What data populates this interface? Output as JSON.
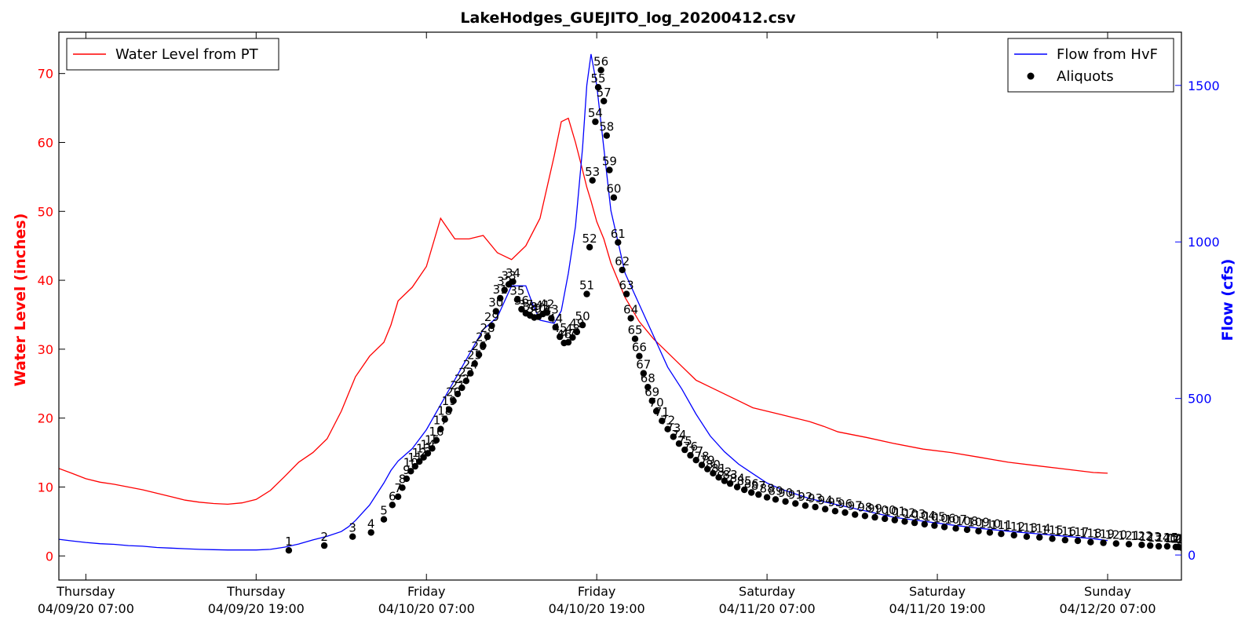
{
  "chart_data": {
    "type": "line",
    "title": "LakeHodges_GUEJITO_log_20200412.csv",
    "left_axis": {
      "label": "Water Level (inches)",
      "color": "#ff0000",
      "ylim": [
        -3.5,
        76
      ],
      "ticks": [
        0,
        10,
        20,
        30,
        40,
        50,
        60,
        70
      ]
    },
    "right_axis": {
      "label": "Flow (cfs)",
      "color": "#0000ff",
      "ylim": [
        -80,
        1670
      ],
      "ticks": [
        0,
        500,
        1000,
        1500
      ]
    },
    "x_axis": {
      "unit": "hours since 04/09/20 00:00",
      "xlim": [
        5.1,
        84.2
      ],
      "ticks": [
        {
          "x": 7,
          "day": "Thursday",
          "date": "04/09/20 07:00"
        },
        {
          "x": 19,
          "day": "Thursday",
          "date": "04/09/20 19:00"
        },
        {
          "x": 31,
          "day": "Friday",
          "date": "04/10/20 07:00"
        },
        {
          "x": 43,
          "day": "Friday",
          "date": "04/10/20 19:00"
        },
        {
          "x": 55,
          "day": "Saturday",
          "date": "04/11/20 07:00"
        },
        {
          "x": 67,
          "day": "Saturday",
          "date": "04/11/20 19:00"
        },
        {
          "x": 79,
          "day": "Sunday",
          "date": "04/12/20 07:00"
        }
      ]
    },
    "legend_left": [
      {
        "label": "Water Level from PT",
        "color": "#ff0000",
        "marker": "line"
      }
    ],
    "legend_right": [
      {
        "label": "Flow from HvF",
        "color": "#0000ff",
        "marker": "line"
      },
      {
        "label": "Aliquots",
        "color": "#000000",
        "marker": "dot"
      }
    ],
    "series": [
      {
        "name": "Water Level from PT",
        "axis": "left",
        "color": "#ff0000",
        "x": [
          5.1,
          6.0,
          7.0,
          8.0,
          9.0,
          10.0,
          11.0,
          12.0,
          13.0,
          14.0,
          15.0,
          16.0,
          17.0,
          18.0,
          19.0,
          20.0,
          21.0,
          22.0,
          23.0,
          24.0,
          25.0,
          25.5,
          26.0,
          27.0,
          28.0,
          28.5,
          29.0,
          30.0,
          31.0,
          32.0,
          33.0,
          34.0,
          35.0,
          36.0,
          37.0,
          38.0,
          39.0,
          40.0,
          40.5,
          41.0,
          41.5,
          42.0,
          42.3,
          42.6,
          43.0,
          43.5,
          44.0,
          44.5,
          45.0,
          46.0,
          47.0,
          48.0,
          49.0,
          50.0,
          51.0,
          52.0,
          53.0,
          54.0,
          55.0,
          56.0,
          57.0,
          58.0,
          59.0,
          60.0,
          62.0,
          64.0,
          66.0,
          68.0,
          70.0,
          72.0,
          74.0,
          76.0,
          78.0,
          79.0
        ],
        "y": [
          12.7,
          12.0,
          11.2,
          10.7,
          10.4,
          10.0,
          9.6,
          9.1,
          8.6,
          8.1,
          7.8,
          7.6,
          7.5,
          7.7,
          8.2,
          9.5,
          11.5,
          13.6,
          15.0,
          17.0,
          21.0,
          23.5,
          26.0,
          29.0,
          31.0,
          33.5,
          37.0,
          39.0,
          42.0,
          49.0,
          46.0,
          46.0,
          46.5,
          44.0,
          43.0,
          45.0,
          49.0,
          58.0,
          63.0,
          63.5,
          60.0,
          56.0,
          53.5,
          51.5,
          48.5,
          46.0,
          42.5,
          40.0,
          37.5,
          34.0,
          31.5,
          29.5,
          27.5,
          25.5,
          24.5,
          23.5,
          22.5,
          21.5,
          21.0,
          20.5,
          20.0,
          19.5,
          18.8,
          18.0,
          17.2,
          16.3,
          15.5,
          15.0,
          14.3,
          13.6,
          13.1,
          12.6,
          12.1,
          12.0
        ]
      },
      {
        "name": "Flow from HvF",
        "axis": "right",
        "color": "#0000ff",
        "x": [
          5.1,
          6.0,
          7.0,
          8.0,
          9.0,
          10.0,
          11.0,
          12.0,
          13.0,
          14.0,
          15.0,
          16.0,
          17.0,
          18.0,
          19.0,
          20.0,
          21.0,
          22.0,
          23.0,
          24.0,
          25.0,
          25.5,
          26.0,
          27.0,
          28.0,
          28.5,
          29.0,
          30.0,
          31.0,
          32.0,
          33.0,
          34.0,
          35.0,
          36.0,
          37.0,
          38.0,
          38.5,
          39.0,
          40.0,
          40.5,
          41.0,
          41.5,
          42.0,
          42.3,
          42.6,
          43.0,
          43.5,
          44.0,
          44.5,
          45.0,
          46.0,
          47.0,
          48.0,
          49.0,
          50.0,
          51.0,
          52.0,
          53.0,
          54.0,
          55.0,
          56.0,
          57.0,
          58.0,
          59.0,
          60.0,
          62.0,
          64.0,
          66.0,
          68.0,
          70.0,
          72.0,
          74.0,
          76.0,
          78.0,
          79.0
        ],
        "y": [
          50,
          45,
          40,
          36,
          34,
          30,
          28,
          24,
          22,
          20,
          18,
          17,
          16,
          16,
          16,
          18,
          25,
          35,
          48,
          60,
          75,
          90,
          110,
          160,
          230,
          270,
          300,
          340,
          400,
          480,
          560,
          640,
          720,
          760,
          860,
          860,
          800,
          750,
          740,
          780,
          900,
          1050,
          1300,
          1500,
          1600,
          1500,
          1300,
          1100,
          1000,
          900,
          800,
          700,
          600,
          530,
          450,
          380,
          330,
          290,
          260,
          230,
          210,
          195,
          180,
          170,
          160,
          140,
          120,
          108,
          96,
          85,
          76,
          68,
          60,
          52,
          46
        ]
      }
    ],
    "aliquots": [
      {
        "label": "1",
        "x": 21.3,
        "y": 0.8
      },
      {
        "label": "2",
        "x": 23.8,
        "y": 1.5
      },
      {
        "label": "3",
        "x": 25.8,
        "y": 2.8
      },
      {
        "label": "4",
        "x": 27.1,
        "y": 3.4
      },
      {
        "label": "5",
        "x": 28.0,
        "y": 5.3
      },
      {
        "label": "6",
        "x": 28.6,
        "y": 7.4
      },
      {
        "label": "7",
        "x": 29.0,
        "y": 8.6
      },
      {
        "label": "8",
        "x": 29.3,
        "y": 9.9
      },
      {
        "label": "9",
        "x": 29.6,
        "y": 11.2
      },
      {
        "label": "10",
        "x": 29.9,
        "y": 12.3
      },
      {
        "label": "11",
        "x": 30.2,
        "y": 13.0
      },
      {
        "label": "12",
        "x": 30.5,
        "y": 13.7
      },
      {
        "label": "13",
        "x": 30.8,
        "y": 14.3
      },
      {
        "label": "14",
        "x": 31.1,
        "y": 14.9
      },
      {
        "label": "15",
        "x": 31.4,
        "y": 15.6
      },
      {
        "label": "16",
        "x": 31.7,
        "y": 16.8
      },
      {
        "label": "17",
        "x": 32.0,
        "y": 18.4
      },
      {
        "label": "18",
        "x": 32.3,
        "y": 19.8
      },
      {
        "label": "19",
        "x": 32.6,
        "y": 21.2
      },
      {
        "label": "20",
        "x": 32.9,
        "y": 22.5
      },
      {
        "label": "21",
        "x": 33.2,
        "y": 23.5
      },
      {
        "label": "22",
        "x": 33.5,
        "y": 24.4
      },
      {
        "label": "23",
        "x": 33.8,
        "y": 25.4
      },
      {
        "label": "24",
        "x": 34.1,
        "y": 26.5
      },
      {
        "label": "25",
        "x": 34.4,
        "y": 27.9
      },
      {
        "label": "26",
        "x": 34.7,
        "y": 29.2
      },
      {
        "label": "27",
        "x": 35.0,
        "y": 30.5
      },
      {
        "label": "28",
        "x": 35.3,
        "y": 31.8
      },
      {
        "label": "29",
        "x": 35.6,
        "y": 33.4
      },
      {
        "label": "30",
        "x": 35.9,
        "y": 35.5
      },
      {
        "label": "31",
        "x": 36.2,
        "y": 37.4
      },
      {
        "label": "32",
        "x": 36.5,
        "y": 38.6
      },
      {
        "label": "33",
        "x": 36.8,
        "y": 39.4
      },
      {
        "label": "34",
        "x": 37.1,
        "y": 39.8
      },
      {
        "label": "35",
        "x": 37.4,
        "y": 37.2
      },
      {
        "label": "36",
        "x": 37.7,
        "y": 35.8
      },
      {
        "label": "37",
        "x": 38.0,
        "y": 35.2
      },
      {
        "label": "38",
        "x": 38.3,
        "y": 34.9
      },
      {
        "label": "39",
        "x": 38.6,
        "y": 34.6
      },
      {
        "label": "40",
        "x": 38.9,
        "y": 34.7
      },
      {
        "label": "41",
        "x": 39.2,
        "y": 35.1
      },
      {
        "label": "42",
        "x": 39.5,
        "y": 35.3
      },
      {
        "label": "43",
        "x": 39.8,
        "y": 34.5
      },
      {
        "label": "44",
        "x": 40.1,
        "y": 33.2
      },
      {
        "label": "45",
        "x": 40.4,
        "y": 31.8
      },
      {
        "label": "46",
        "x": 40.7,
        "y": 30.9
      },
      {
        "label": "47",
        "x": 41.0,
        "y": 31.0
      },
      {
        "label": "48",
        "x": 41.3,
        "y": 31.7
      },
      {
        "label": "49",
        "x": 41.6,
        "y": 32.5
      },
      {
        "label": "50",
        "x": 42.0,
        "y": 33.5
      },
      {
        "label": "51",
        "x": 42.3,
        "y": 38.0
      },
      {
        "label": "52",
        "x": 42.5,
        "y": 44.8
      },
      {
        "label": "53",
        "x": 42.7,
        "y": 54.5
      },
      {
        "label": "54",
        "x": 42.9,
        "y": 63.0
      },
      {
        "label": "55",
        "x": 43.1,
        "y": 68.0
      },
      {
        "label": "56",
        "x": 43.3,
        "y": 70.5
      },
      {
        "label": "57",
        "x": 43.5,
        "y": 66.0
      },
      {
        "label": "58",
        "x": 43.7,
        "y": 61.0
      },
      {
        "label": "59",
        "x": 43.9,
        "y": 56.0
      },
      {
        "label": "60",
        "x": 44.2,
        "y": 52.0
      },
      {
        "label": "61",
        "x": 44.5,
        "y": 45.5
      },
      {
        "label": "62",
        "x": 44.8,
        "y": 41.5
      },
      {
        "label": "63",
        "x": 45.1,
        "y": 38.0
      },
      {
        "label": "64",
        "x": 45.4,
        "y": 34.5
      },
      {
        "label": "65",
        "x": 45.7,
        "y": 31.5
      },
      {
        "label": "66",
        "x": 46.0,
        "y": 29.0
      },
      {
        "label": "67",
        "x": 46.3,
        "y": 26.5
      },
      {
        "label": "68",
        "x": 46.6,
        "y": 24.5
      },
      {
        "label": "69",
        "x": 46.9,
        "y": 22.5
      },
      {
        "label": "70",
        "x": 47.2,
        "y": 21.0
      },
      {
        "label": "71",
        "x": 47.6,
        "y": 19.6
      },
      {
        "label": "72",
        "x": 48.0,
        "y": 18.4
      },
      {
        "label": "73",
        "x": 48.4,
        "y": 17.3
      },
      {
        "label": "74",
        "x": 48.8,
        "y": 16.3
      },
      {
        "label": "75",
        "x": 49.2,
        "y": 15.4
      },
      {
        "label": "76",
        "x": 49.6,
        "y": 14.6
      },
      {
        "label": "77",
        "x": 50.0,
        "y": 13.9
      },
      {
        "label": "78",
        "x": 50.4,
        "y": 13.2
      },
      {
        "label": "79",
        "x": 50.8,
        "y": 12.6
      },
      {
        "label": "80",
        "x": 51.2,
        "y": 12.0
      },
      {
        "label": "81",
        "x": 51.6,
        "y": 11.4
      },
      {
        "label": "82",
        "x": 52.0,
        "y": 10.9
      },
      {
        "label": "83",
        "x": 52.4,
        "y": 10.5
      },
      {
        "label": "84",
        "x": 52.9,
        "y": 10.0
      },
      {
        "label": "85",
        "x": 53.4,
        "y": 9.6
      },
      {
        "label": "86",
        "x": 53.9,
        "y": 9.2
      },
      {
        "label": "87",
        "x": 54.4,
        "y": 8.9
      },
      {
        "label": "88",
        "x": 55.0,
        "y": 8.5
      },
      {
        "label": "89",
        "x": 55.6,
        "y": 8.2
      },
      {
        "label": "90",
        "x": 56.3,
        "y": 7.9
      },
      {
        "label": "91",
        "x": 57.0,
        "y": 7.6
      },
      {
        "label": "92",
        "x": 57.7,
        "y": 7.3
      },
      {
        "label": "93",
        "x": 58.4,
        "y": 7.1
      },
      {
        "label": "94",
        "x": 59.1,
        "y": 6.8
      },
      {
        "label": "95",
        "x": 59.8,
        "y": 6.5
      },
      {
        "label": "96",
        "x": 60.5,
        "y": 6.3
      },
      {
        "label": "97",
        "x": 61.2,
        "y": 6.0
      },
      {
        "label": "98",
        "x": 61.9,
        "y": 5.8
      },
      {
        "label": "99",
        "x": 62.6,
        "y": 5.6
      },
      {
        "label": "100",
        "x": 63.3,
        "y": 5.4
      },
      {
        "label": "101",
        "x": 64.0,
        "y": 5.2
      },
      {
        "label": "102",
        "x": 64.7,
        "y": 5.0
      },
      {
        "label": "103",
        "x": 65.4,
        "y": 4.8
      },
      {
        "label": "104",
        "x": 66.1,
        "y": 4.6
      },
      {
        "label": "105",
        "x": 66.8,
        "y": 4.4
      },
      {
        "label": "106",
        "x": 67.5,
        "y": 4.2
      },
      {
        "label": "107",
        "x": 68.3,
        "y": 4.0
      },
      {
        "label": "108",
        "x": 69.1,
        "y": 3.8
      },
      {
        "label": "109",
        "x": 69.9,
        "y": 3.6
      },
      {
        "label": "110",
        "x": 70.7,
        "y": 3.4
      },
      {
        "label": "111",
        "x": 71.5,
        "y": 3.2
      },
      {
        "label": "112",
        "x": 72.4,
        "y": 3.0
      },
      {
        "label": "113",
        "x": 73.3,
        "y": 2.8
      },
      {
        "label": "114",
        "x": 74.2,
        "y": 2.7
      },
      {
        "label": "115",
        "x": 75.1,
        "y": 2.5
      },
      {
        "label": "116",
        "x": 76.0,
        "y": 2.3
      },
      {
        "label": "117",
        "x": 76.9,
        "y": 2.2
      },
      {
        "label": "118",
        "x": 77.8,
        "y": 2.0
      },
      {
        "label": "119",
        "x": 78.7,
        "y": 1.9
      },
      {
        "label": "120",
        "x": 79.6,
        "y": 1.8
      },
      {
        "label": "121",
        "x": 80.5,
        "y": 1.7
      },
      {
        "label": "122",
        "x": 81.4,
        "y": 1.6
      },
      {
        "label": "123",
        "x": 82.0,
        "y": 1.5
      },
      {
        "label": "124",
        "x": 82.6,
        "y": 1.4
      },
      {
        "label": "125",
        "x": 83.2,
        "y": 1.4
      },
      {
        "label": "126",
        "x": 83.8,
        "y": 1.3
      },
      {
        "label": "127",
        "x": 84.0,
        "y": 1.3
      },
      {
        "label": "128",
        "x": 84.2,
        "y": 1.2
      },
      {
        "label": "129",
        "x": 84.4,
        "y": 1.2
      },
      {
        "label": "130",
        "x": 84.6,
        "y": 1.1
      },
      {
        "label": "131",
        "x": 84.8,
        "y": 1.1
      },
      {
        "label": "132",
        "x": 85.0,
        "y": 1.0
      },
      {
        "label": "133",
        "x": 85.2,
        "y": 1.0
      },
      {
        "label": "134",
        "x": 85.4,
        "y": 1.0
      },
      {
        "label": "135",
        "x": 85.6,
        "y": 0.9
      },
      {
        "label": "136",
        "x": 85.8,
        "y": 0.9
      },
      {
        "label": "137",
        "x": 86.0,
        "y": 0.9
      },
      {
        "label": "138",
        "x": 86.2,
        "y": 0.9
      },
      {
        "label": "139",
        "x": 86.4,
        "y": 0.9
      },
      {
        "label": "140",
        "x": 86.6,
        "y": 0.9
      },
      {
        "label": "141",
        "x": 86.8,
        "y": 0.9
      },
      {
        "label": "142",
        "x": 87.0,
        "y": 0.9
      }
    ]
  }
}
